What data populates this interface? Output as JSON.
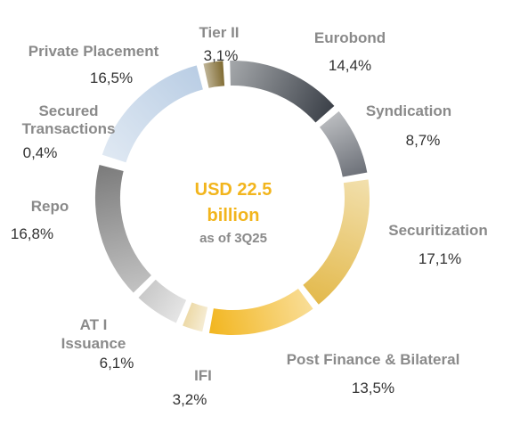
{
  "chart_data": {
    "type": "pie",
    "style": "donut",
    "center_text": {
      "line1": "USD 22.5",
      "line2": "billion",
      "line3": "as of 3Q25"
    },
    "slices": [
      {
        "label": "Eurobond",
        "value_text": "14,4%",
        "value": 14.4,
        "color": "#3a3f47"
      },
      {
        "label": "Syndication",
        "value_text": "8,7%",
        "value": 8.7,
        "color": "#6a6e76"
      },
      {
        "label": "Securitization",
        "value_text": "17,1%",
        "value": 17.1,
        "color": "#e3b94b"
      },
      {
        "label": "Post Finance & Bilateral",
        "value_text": "13,5%",
        "value": 13.5,
        "color": "#f2b51d"
      },
      {
        "label": "IFI",
        "value_text": "3,2%",
        "value": 3.2,
        "color": "#ecd8a4"
      },
      {
        "label": "AT I Issuance",
        "value_text": "6,1%",
        "value": 6.1,
        "color": "#c8c8c8"
      },
      {
        "label": "Repo",
        "value_text": "16,8%",
        "value": 16.8,
        "color": "#7a7a7a"
      },
      {
        "label": "Secured Transactions",
        "value_text": "0,4%",
        "value": 0.4,
        "color": "#a8c4e0"
      },
      {
        "label": "Private Placement",
        "value_text": "16,5%",
        "value": 16.5,
        "color": "#b9cde4"
      },
      {
        "label": "Tier II",
        "value_text": "3,1%",
        "value": 3.1,
        "color": "#7a6428"
      }
    ]
  }
}
